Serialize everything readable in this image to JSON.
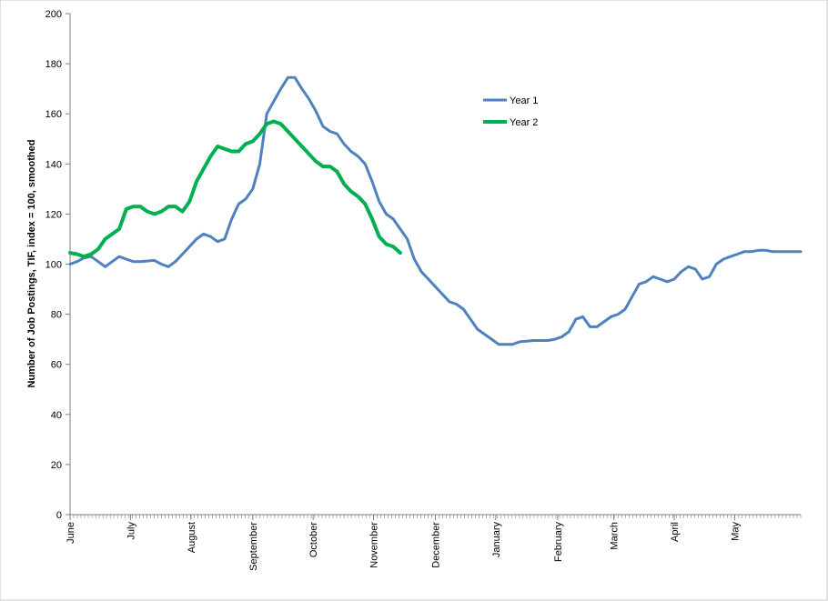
{
  "chart_data": {
    "type": "line",
    "title": "",
    "xlabel": "",
    "ylabel": "Number of Job Postings, TIF, index = 100, smoothed",
    "ylim": [
      0,
      200
    ],
    "yticks": [
      0,
      20,
      40,
      60,
      80,
      100,
      120,
      140,
      160,
      180,
      200
    ],
    "x_unit": "weeks",
    "x_range": [
      0,
      52
    ],
    "month_labels": [
      {
        "label": "June",
        "x": 0
      },
      {
        "label": "July",
        "x": 4.3
      },
      {
        "label": "August",
        "x": 8.6
      },
      {
        "label": "September",
        "x": 13
      },
      {
        "label": "October",
        "x": 17.3
      },
      {
        "label": "November",
        "x": 21.6
      },
      {
        "label": "December",
        "x": 26
      },
      {
        "label": "January",
        "x": 30.3
      },
      {
        "label": "February",
        "x": 34.7
      },
      {
        "label": "March",
        "x": 38.7
      },
      {
        "label": "April",
        "x": 43
      },
      {
        "label": "May",
        "x": 47.3
      }
    ],
    "grid": false,
    "legend_position": "top-right",
    "series": [
      {
        "name": "Year 1",
        "color": "#4f81bd",
        "points": [
          [
            0,
            100
          ],
          [
            0.5,
            101
          ],
          [
            1,
            102.5
          ],
          [
            1.5,
            103
          ],
          [
            2,
            101
          ],
          [
            2.5,
            99
          ],
          [
            3,
            101
          ],
          [
            3.5,
            103
          ],
          [
            4,
            102
          ],
          [
            4.5,
            101
          ],
          [
            5,
            101
          ],
          [
            6,
            101.5
          ],
          [
            6.5,
            100
          ],
          [
            7,
            99
          ],
          [
            7.5,
            101
          ],
          [
            8,
            104
          ],
          [
            8.5,
            107
          ],
          [
            9,
            110
          ],
          [
            9.5,
            112
          ],
          [
            10,
            111
          ],
          [
            10.5,
            109
          ],
          [
            11,
            110
          ],
          [
            11.5,
            118
          ],
          [
            12,
            124
          ],
          [
            12.5,
            126
          ],
          [
            13,
            130
          ],
          [
            13.5,
            140
          ],
          [
            14,
            160
          ],
          [
            14.5,
            165
          ],
          [
            15,
            170
          ],
          [
            15.5,
            174.5
          ],
          [
            16,
            174.5
          ],
          [
            16.5,
            170
          ],
          [
            17,
            166
          ],
          [
            17.5,
            161
          ],
          [
            18,
            155
          ],
          [
            18.5,
            153
          ],
          [
            19,
            152
          ],
          [
            19.5,
            148
          ],
          [
            20,
            145
          ],
          [
            20.5,
            143
          ],
          [
            21,
            140
          ],
          [
            21.5,
            133
          ],
          [
            22,
            125
          ],
          [
            22.5,
            120
          ],
          [
            23,
            118
          ],
          [
            23.5,
            114
          ],
          [
            24,
            110
          ],
          [
            24.5,
            102
          ],
          [
            25,
            97
          ],
          [
            25.5,
            94
          ],
          [
            26,
            91
          ],
          [
            26.5,
            88
          ],
          [
            27,
            85
          ],
          [
            27.5,
            84
          ],
          [
            28,
            82
          ],
          [
            28.5,
            78
          ],
          [
            29,
            74
          ],
          [
            29.5,
            72
          ],
          [
            30,
            70
          ],
          [
            30.5,
            68
          ],
          [
            31,
            68
          ],
          [
            31.5,
            68
          ],
          [
            32,
            69
          ],
          [
            33,
            69.5
          ],
          [
            34,
            69.5
          ],
          [
            34.5,
            70
          ],
          [
            35,
            71
          ],
          [
            35.5,
            73
          ],
          [
            36,
            78
          ],
          [
            36.5,
            79
          ],
          [
            37,
            75
          ],
          [
            37.5,
            75
          ],
          [
            38,
            77
          ],
          [
            38.5,
            79
          ],
          [
            39,
            80
          ],
          [
            39.5,
            82
          ],
          [
            40,
            87
          ],
          [
            40.5,
            92
          ],
          [
            41,
            93
          ],
          [
            41.5,
            95
          ],
          [
            42,
            94
          ],
          [
            42.5,
            93
          ],
          [
            43,
            94
          ],
          [
            43.5,
            97
          ],
          [
            44,
            99
          ],
          [
            44.5,
            98
          ],
          [
            45,
            94
          ],
          [
            45.5,
            95
          ],
          [
            46,
            100
          ],
          [
            46.5,
            102
          ],
          [
            47,
            103
          ],
          [
            47.5,
            104
          ],
          [
            48,
            105
          ],
          [
            48.5,
            105
          ],
          [
            49,
            105.5
          ],
          [
            49.5,
            105.5
          ],
          [
            50,
            105
          ],
          [
            51,
            105
          ],
          [
            52,
            105
          ]
        ]
      },
      {
        "name": "Year 2",
        "color": "#00b050",
        "points": [
          [
            0,
            104.5
          ],
          [
            0.5,
            104
          ],
          [
            1,
            103
          ],
          [
            1.5,
            104
          ],
          [
            2,
            106
          ],
          [
            2.5,
            110
          ],
          [
            3,
            112
          ],
          [
            3.5,
            114
          ],
          [
            4,
            122
          ],
          [
            4.5,
            123
          ],
          [
            5,
            123
          ],
          [
            5.5,
            121
          ],
          [
            6,
            120
          ],
          [
            6.5,
            121
          ],
          [
            7,
            123
          ],
          [
            7.5,
            123
          ],
          [
            8,
            121
          ],
          [
            8.5,
            125
          ],
          [
            9,
            133
          ],
          [
            9.5,
            138
          ],
          [
            10,
            143
          ],
          [
            10.5,
            147
          ],
          [
            11,
            146
          ],
          [
            11.5,
            145
          ],
          [
            12,
            145
          ],
          [
            12.5,
            148
          ],
          [
            13,
            149
          ],
          [
            13.5,
            152
          ],
          [
            14,
            156
          ],
          [
            14.5,
            157
          ],
          [
            15,
            156
          ],
          [
            15.5,
            153
          ],
          [
            16,
            150
          ],
          [
            16.5,
            147
          ],
          [
            17,
            144
          ],
          [
            17.5,
            141
          ],
          [
            18,
            139
          ],
          [
            18.5,
            139
          ],
          [
            19,
            137
          ],
          [
            19.5,
            132
          ],
          [
            20,
            129
          ],
          [
            20.5,
            127
          ],
          [
            21,
            124
          ],
          [
            21.5,
            118
          ],
          [
            22,
            111
          ],
          [
            22.5,
            108
          ],
          [
            23,
            107
          ],
          [
            23.5,
            104.5
          ]
        ]
      }
    ]
  }
}
